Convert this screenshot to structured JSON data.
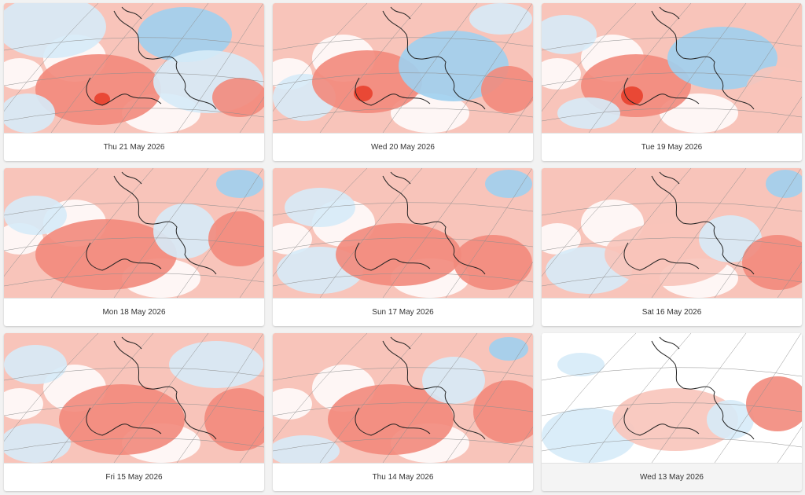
{
  "colors": {
    "warm_strong": "#e8402c",
    "warm_mid": "#f28a7c",
    "warm_light": "#f8c4ba",
    "neutral": "#ffffff",
    "cool_light": "#d6ebf8",
    "cool_mid": "#9fd0f0",
    "cool_strong": "#5fb4ea",
    "coast": "#222222",
    "graticule": "#8f8f8f"
  },
  "cards": [
    {
      "date": "Thu 21 May 2026",
      "selected": false
    },
    {
      "date": "Wed 20 May 2026",
      "selected": false
    },
    {
      "date": "Tue 19 May 2026",
      "selected": false
    },
    {
      "date": "Mon 18 May 2026",
      "selected": false
    },
    {
      "date": "Sun 17 May 2026",
      "selected": false
    },
    {
      "date": "Sat 16 May 2026",
      "selected": false
    },
    {
      "date": "Fri 15 May 2026",
      "selected": false
    },
    {
      "date": "Thu 14 May 2026",
      "selected": false
    },
    {
      "date": "Wed 13 May 2026",
      "selected": true
    }
  ]
}
